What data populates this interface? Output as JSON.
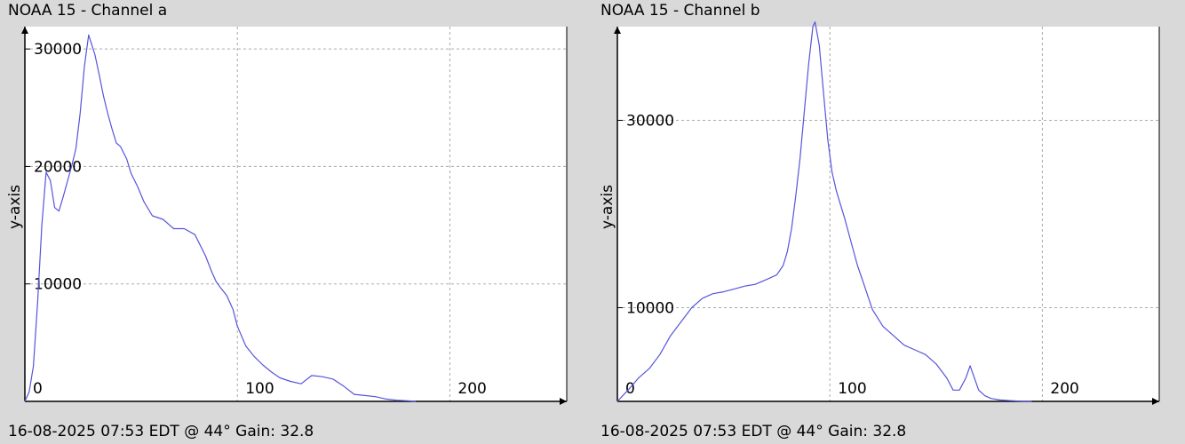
{
  "charts": [
    {
      "title": "NOAA 15 - Channel a",
      "footer": "16-08-2025 07:53 EDT @ 44° Gain: 32.8",
      "ylabel": "y-axis"
    },
    {
      "title": "NOAA 15 - Channel b",
      "footer": "16-08-2025 07:53 EDT @ 44° Gain: 32.8",
      "ylabel": "y-axis"
    }
  ],
  "colors": {
    "line": "#5555dd",
    "background": "#d9d9d9",
    "plot": "#ffffff",
    "grid": "#aaaaaa"
  },
  "chart_data": [
    {
      "type": "line",
      "title": "NOAA 15 - Channel a",
      "xlabel": "",
      "ylabel": "y-axis",
      "xlim": [
        0,
        255
      ],
      "ylim": [
        0,
        31900
      ],
      "xticks": [
        0,
        100,
        200
      ],
      "yticks": [
        10000,
        20000,
        30000
      ],
      "xtick_labels": [
        "0",
        "100",
        "200"
      ],
      "ytick_labels": [
        "10000",
        "20000",
        "30000"
      ],
      "grid": true,
      "series": [
        {
          "x": [
            0,
            2,
            4,
            6,
            8,
            10,
            12,
            14,
            16,
            18,
            20,
            22,
            24,
            26,
            28,
            30,
            33,
            35,
            37,
            39,
            41,
            43,
            45,
            48,
            50,
            53,
            56,
            60,
            65,
            70,
            75,
            80,
            85,
            88,
            90,
            92,
            95,
            98,
            100,
            104,
            108,
            112,
            116,
            120,
            125,
            130,
            135,
            140,
            145,
            150,
            155,
            160,
            165,
            170,
            175,
            180,
            184
          ],
          "values": [
            0,
            800,
            3000,
            8500,
            15000,
            19500,
            18800,
            16500,
            16200,
            17400,
            18700,
            20000,
            21500,
            24500,
            28500,
            31200,
            29500,
            27800,
            26000,
            24500,
            23200,
            22000,
            21700,
            20600,
            19400,
            18300,
            17000,
            15800,
            15500,
            14700,
            14700,
            14200,
            12400,
            11000,
            10200,
            9700,
            9000,
            7800,
            6400,
            4700,
            3800,
            3100,
            2500,
            2000,
            1700,
            1500,
            2200,
            2100,
            1900,
            1300,
            600,
            500,
            400,
            200,
            100,
            50,
            0
          ]
        }
      ]
    },
    {
      "type": "line",
      "title": "NOAA 15 - Channel b",
      "xlabel": "",
      "ylabel": "y-axis",
      "xlim": [
        0,
        255
      ],
      "ylim": [
        0,
        40000
      ],
      "xticks": [
        0,
        100,
        200
      ],
      "yticks": [
        10000,
        30000
      ],
      "xtick_labels": [
        "0",
        "100",
        "200"
      ],
      "ytick_labels": [
        "10000",
        "30000"
      ],
      "grid": true,
      "series": [
        {
          "x": [
            0,
            5,
            10,
            15,
            20,
            25,
            30,
            35,
            40,
            45,
            50,
            55,
            60,
            65,
            70,
            75,
            78,
            80,
            82,
            84,
            86,
            88,
            90,
            92,
            93,
            95,
            97,
            99,
            101,
            103,
            105,
            107,
            110,
            113,
            116,
            120,
            125,
            130,
            135,
            140,
            145,
            150,
            155,
            158,
            161,
            164,
            166,
            168,
            170,
            173,
            176,
            180,
            185,
            190,
            195
          ],
          "values": [
            0,
            1200,
            2500,
            3500,
            5000,
            7000,
            8500,
            10000,
            11000,
            11500,
            11700,
            12000,
            12300,
            12500,
            13000,
            13500,
            14500,
            16000,
            18500,
            22000,
            26000,
            31000,
            36000,
            40000,
            40500,
            38000,
            33000,
            28000,
            24500,
            22500,
            21000,
            19500,
            17000,
            14500,
            12500,
            9800,
            8000,
            7000,
            6000,
            5500,
            5000,
            4000,
            2500,
            1200,
            1200,
            2500,
            3800,
            2500,
            1200,
            600,
            300,
            150,
            80,
            20,
            0
          ]
        }
      ]
    }
  ]
}
